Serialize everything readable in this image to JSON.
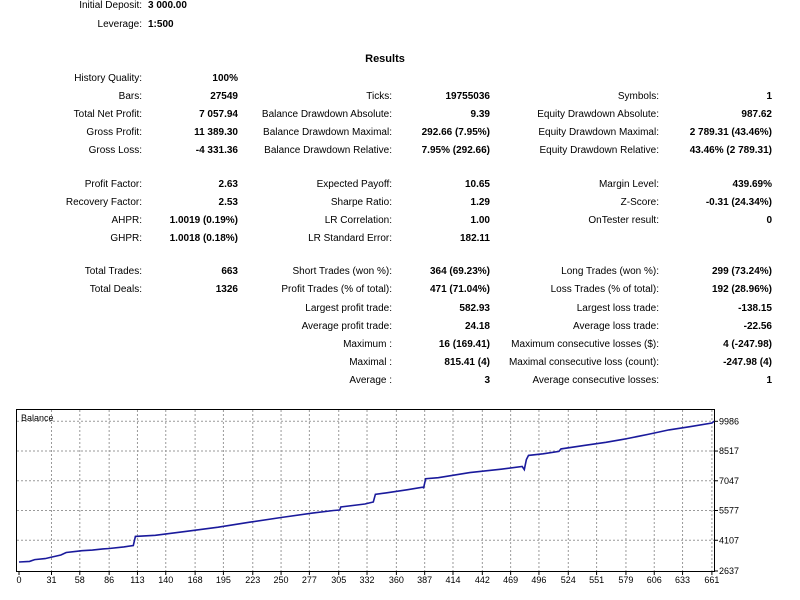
{
  "header": {
    "initial_deposit_label": "Initial Deposit:",
    "initial_deposit_value": "3 000.00",
    "leverage_label": "Leverage:",
    "leverage_value": "1:500"
  },
  "results_title": "Results",
  "stats": {
    "history_quality": {
      "label": "History Quality:",
      "value": "100%"
    },
    "bars": {
      "label": "Bars:",
      "value": "27549"
    },
    "ticks": {
      "label": "Ticks:",
      "value": "19755036"
    },
    "symbols": {
      "label": "Symbols:",
      "value": "1"
    },
    "total_net_profit": {
      "label": "Total Net Profit:",
      "value": "7 057.94"
    },
    "balance_dd_abs": {
      "label": "Balance Drawdown Absolute:",
      "value": "9.39"
    },
    "equity_dd_abs": {
      "label": "Equity Drawdown Absolute:",
      "value": "987.62"
    },
    "gross_profit": {
      "label": "Gross Profit:",
      "value": "11 389.30"
    },
    "balance_dd_max": {
      "label": "Balance Drawdown Maximal:",
      "value": "292.66 (7.95%)"
    },
    "equity_dd_max": {
      "label": "Equity Drawdown Maximal:",
      "value": "2 789.31 (43.46%)"
    },
    "gross_loss": {
      "label": "Gross Loss:",
      "value": "-4 331.36"
    },
    "balance_dd_rel": {
      "label": "Balance Drawdown Relative:",
      "value": "7.95% (292.66)"
    },
    "equity_dd_rel": {
      "label": "Equity Drawdown Relative:",
      "value": "43.46% (2 789.31)"
    },
    "profit_factor": {
      "label": "Profit Factor:",
      "value": "2.63"
    },
    "expected_payoff": {
      "label": "Expected Payoff:",
      "value": "10.65"
    },
    "margin_level": {
      "label": "Margin Level:",
      "value": "439.69%"
    },
    "recovery_factor": {
      "label": "Recovery Factor:",
      "value": "2.53"
    },
    "sharpe_ratio": {
      "label": "Sharpe Ratio:",
      "value": "1.29"
    },
    "z_score": {
      "label": "Z-Score:",
      "value": "-0.31 (24.34%)"
    },
    "ahpr": {
      "label": "AHPR:",
      "value": "1.0019 (0.19%)"
    },
    "lr_correlation": {
      "label": "LR Correlation:",
      "value": "1.00"
    },
    "ontester": {
      "label": "OnTester result:",
      "value": "0"
    },
    "ghpr": {
      "label": "GHPR:",
      "value": "1.0018 (0.18%)"
    },
    "lr_std_error": {
      "label": "LR Standard Error:",
      "value": "182.11"
    },
    "total_trades": {
      "label": "Total Trades:",
      "value": "663"
    },
    "short_trades": {
      "label": "Short Trades (won %):",
      "value": "364 (69.23%)"
    },
    "long_trades": {
      "label": "Long Trades (won %):",
      "value": "299 (73.24%)"
    },
    "total_deals": {
      "label": "Total Deals:",
      "value": "1326"
    },
    "profit_trades": {
      "label": "Profit Trades (% of total):",
      "value": "471 (71.04%)"
    },
    "loss_trades": {
      "label": "Loss Trades (% of total):",
      "value": "192 (28.96%)"
    },
    "largest_profit": {
      "label": "Largest profit trade:",
      "value": "582.93"
    },
    "largest_loss": {
      "label": "Largest loss trade:",
      "value": "-138.15"
    },
    "avg_profit": {
      "label": "Average profit trade:",
      "value": "24.18"
    },
    "avg_loss": {
      "label": "Average loss trade:",
      "value": "-22.56"
    },
    "max_consec_wins": {
      "label": "Maximum :",
      "value": "16 (169.41)"
    },
    "max_consec_losses": {
      "label": "Maximum consecutive losses ($):",
      "value": "4 (-247.98)"
    },
    "maximal_consec_profit": {
      "label": "Maximal :",
      "value": "815.41 (4)"
    },
    "maximal_consec_loss": {
      "label": "Maximal consecutive loss (count):",
      "value": "-247.98 (4)"
    },
    "avg_consec_wins": {
      "label": "Average :",
      "value": "3"
    },
    "avg_consec_losses": {
      "label": "Average consecutive losses:",
      "value": "1"
    }
  },
  "chart_data": {
    "type": "line",
    "title": "Balance",
    "xlabel": "",
    "ylabel": "",
    "x_ticks": [
      0,
      31,
      58,
      86,
      113,
      140,
      168,
      195,
      223,
      250,
      277,
      305,
      332,
      360,
      387,
      414,
      442,
      469,
      496,
      524,
      551,
      579,
      606,
      633,
      661
    ],
    "y_ticks": [
      2637,
      4107,
      5577,
      7047,
      8517,
      9986
    ],
    "xlim": [
      0,
      663
    ],
    "ylim": [
      2637,
      10100
    ],
    "grid": true,
    "line_color": "#1a1a9c",
    "series": [
      {
        "x": [
          0,
          10,
          15,
          25,
          30,
          40,
          45,
          55,
          60,
          70,
          80,
          86,
          100,
          109,
          111,
          130,
          160,
          190,
          220,
          250,
          280,
          300,
          306,
          307,
          330,
          338,
          340,
          350,
          370,
          385,
          386,
          388,
          400,
          430,
          460,
          480,
          482,
          484,
          486,
          500,
          515,
          517,
          540,
          560,
          575,
          580,
          600,
          620,
          640,
          661,
          663
        ],
        "y": [
          3030,
          3060,
          3150,
          3200,
          3260,
          3380,
          3500,
          3560,
          3590,
          3620,
          3680,
          3700,
          3780,
          3850,
          4300,
          4350,
          4550,
          4750,
          5000,
          5230,
          5450,
          5580,
          5600,
          5750,
          5900,
          6000,
          6380,
          6450,
          6600,
          6730,
          6700,
          7150,
          7200,
          7450,
          7620,
          7750,
          7600,
          8100,
          8300,
          8380,
          8500,
          8620,
          8800,
          8950,
          9080,
          9130,
          9340,
          9560,
          9720,
          9900,
          9986
        ]
      }
    ]
  }
}
